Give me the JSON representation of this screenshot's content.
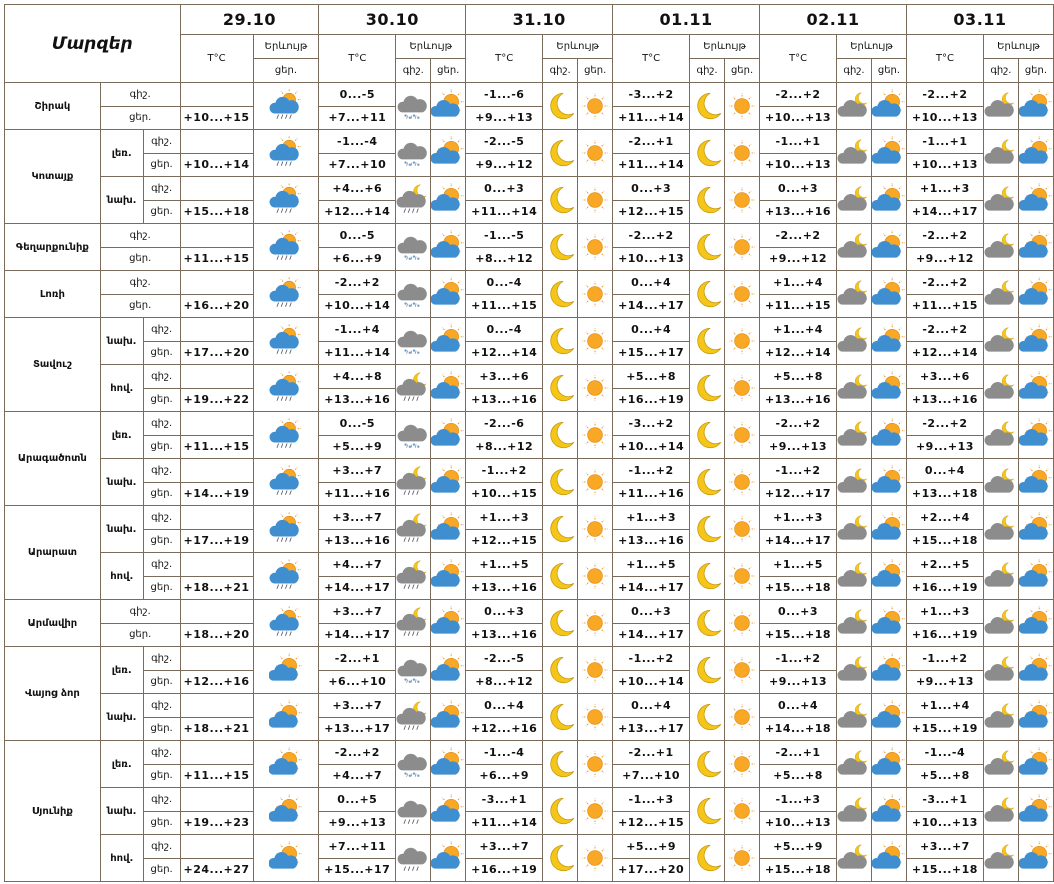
{
  "header": {
    "title": "Մարզեր",
    "phenomenon": "Երևույթ",
    "temp": "T°C",
    "night": "գիշ.",
    "day": "ցեր."
  },
  "dates": [
    "29.10",
    "30.10",
    "31.10",
    "01.11",
    "02.11",
    "03.11"
  ],
  "colors": {
    "border": "#7a6c5c",
    "sun": "#f9a825",
    "moon": "#f5c518",
    "cloud_blue": "#3f8fd0",
    "cloud_gray": "#8c8c8c"
  },
  "regions": [
    {
      "name": "Շիրակ",
      "zones": [
        {
          "zone": "",
          "day1": "+10...+15",
          "day1_icon": "rain-partly-sunny-icon",
          "days": [
            {
              "night": "0...-5",
              "day": "+7...+11",
              "night_icon": "snow-cloud-icon",
              "day_icon": "partly-sunny-icon"
            },
            {
              "night": "-1...-6",
              "day": "+9...+13",
              "night_icon": "moon-icon",
              "day_icon": "sun-icon"
            },
            {
              "night": "-3...+2",
              "day": "+11...+14",
              "night_icon": "moon-icon",
              "day_icon": "sun-icon"
            },
            {
              "night": "-2...+2",
              "day": "+10...+13",
              "night_icon": "night-cloud-icon",
              "day_icon": "partly-sunny-icon"
            },
            {
              "night": "-2...+2",
              "day": "+10...+13",
              "night_icon": "night-cloud-icon",
              "day_icon": "partly-sunny-icon"
            }
          ]
        }
      ]
    },
    {
      "name": "Կոտայք",
      "zones": [
        {
          "zone": "լեռ.",
          "day1": "+10...+14",
          "day1_icon": "rain-partly-sunny-icon",
          "days": [
            {
              "night": "-1...-4",
              "day": "+7...+10",
              "night_icon": "snow-cloud-icon",
              "day_icon": "partly-sunny-icon"
            },
            {
              "night": "-2...-5",
              "day": "+9...+12",
              "night_icon": "moon-icon",
              "day_icon": "sun-icon"
            },
            {
              "night": "-2...+1",
              "day": "+11...+14",
              "night_icon": "moon-icon",
              "day_icon": "sun-icon"
            },
            {
              "night": "-1...+1",
              "day": "+10...+13",
              "night_icon": "night-cloud-icon",
              "day_icon": "partly-sunny-icon"
            },
            {
              "night": "-1...+1",
              "day": "+10...+13",
              "night_icon": "night-cloud-icon",
              "day_icon": "partly-sunny-icon"
            }
          ]
        },
        {
          "zone": "նախ.",
          "day1": "+15...+18",
          "day1_icon": "rain-partly-sunny-icon",
          "days": [
            {
              "night": "+4...+6",
              "day": "+12...+14",
              "night_icon": "night-cloud-rain-icon",
              "day_icon": "partly-sunny-icon"
            },
            {
              "night": "0...+3",
              "day": "+11...+14",
              "night_icon": "moon-icon",
              "day_icon": "sun-icon"
            },
            {
              "night": "0...+3",
              "day": "+12...+15",
              "night_icon": "moon-icon",
              "day_icon": "sun-icon"
            },
            {
              "night": "0...+3",
              "day": "+13...+16",
              "night_icon": "night-cloud-icon",
              "day_icon": "partly-sunny-icon"
            },
            {
              "night": "+1...+3",
              "day": "+14...+17",
              "night_icon": "night-cloud-icon",
              "day_icon": "partly-sunny-icon"
            }
          ]
        }
      ]
    },
    {
      "name": "Գեղարքունիք",
      "zones": [
        {
          "zone": "",
          "day1": "+11...+15",
          "day1_icon": "rain-partly-sunny-icon",
          "days": [
            {
              "night": "0...-5",
              "day": "+6...+9",
              "night_icon": "snow-cloud-icon",
              "day_icon": "partly-sunny-icon"
            },
            {
              "night": "-1...-5",
              "day": "+8...+12",
              "night_icon": "moon-icon",
              "day_icon": "sun-icon"
            },
            {
              "night": "-2...+2",
              "day": "+10...+13",
              "night_icon": "moon-icon",
              "day_icon": "sun-icon"
            },
            {
              "night": "-2...+2",
              "day": "+9...+12",
              "night_icon": "night-cloud-icon",
              "day_icon": "partly-sunny-icon"
            },
            {
              "night": "-2...+2",
              "day": "+9...+12",
              "night_icon": "night-cloud-icon",
              "day_icon": "partly-sunny-icon"
            }
          ]
        }
      ]
    },
    {
      "name": "Լոռի",
      "zones": [
        {
          "zone": "",
          "day1": "+16...+20",
          "day1_icon": "rain-partly-sunny-icon",
          "days": [
            {
              "night": "-2...+2",
              "day": "+10...+14",
              "night_icon": "snow-cloud-icon",
              "day_icon": "partly-sunny-icon"
            },
            {
              "night": "0...-4",
              "day": "+11...+15",
              "night_icon": "moon-icon",
              "day_icon": "sun-icon"
            },
            {
              "night": "0...+4",
              "day": "+14...+17",
              "night_icon": "moon-icon",
              "day_icon": "sun-icon"
            },
            {
              "night": "+1...+4",
              "day": "+11...+15",
              "night_icon": "night-cloud-icon",
              "day_icon": "partly-sunny-icon"
            },
            {
              "night": "-2...+2",
              "day": "+11...+15",
              "night_icon": "night-cloud-icon",
              "day_icon": "partly-sunny-icon"
            }
          ]
        }
      ]
    },
    {
      "name": "Տավուշ",
      "zones": [
        {
          "zone": "նախ.",
          "day1": "+17...+20",
          "day1_icon": "rain-partly-sunny-icon",
          "days": [
            {
              "night": "-1...+4",
              "day": "+11...+14",
              "night_icon": "snow-cloud-icon",
              "day_icon": "partly-sunny-icon"
            },
            {
              "night": "0...-4",
              "day": "+12...+14",
              "night_icon": "moon-icon",
              "day_icon": "sun-icon"
            },
            {
              "night": "0...+4",
              "day": "+15...+17",
              "night_icon": "moon-icon",
              "day_icon": "sun-icon"
            },
            {
              "night": "+1...+4",
              "day": "+12...+14",
              "night_icon": "night-cloud-icon",
              "day_icon": "partly-sunny-icon"
            },
            {
              "night": "-2...+2",
              "day": "+12...+14",
              "night_icon": "night-cloud-icon",
              "day_icon": "partly-sunny-icon"
            }
          ]
        },
        {
          "zone": "հով.",
          "day1": "+19...+22",
          "day1_icon": "rain-partly-sunny-icon",
          "days": [
            {
              "night": "+4...+8",
              "day": "+13...+16",
              "night_icon": "night-cloud-rain-icon",
              "day_icon": "partly-sunny-icon"
            },
            {
              "night": "+3...+6",
              "day": "+13...+16",
              "night_icon": "moon-icon",
              "day_icon": "sun-icon"
            },
            {
              "night": "+5...+8",
              "day": "+16...+19",
              "night_icon": "moon-icon",
              "day_icon": "sun-icon"
            },
            {
              "night": "+5...+8",
              "day": "+13...+16",
              "night_icon": "night-cloud-icon",
              "day_icon": "partly-sunny-icon"
            },
            {
              "night": "+3...+6",
              "day": "+13...+16",
              "night_icon": "night-cloud-icon",
              "day_icon": "partly-sunny-icon"
            }
          ]
        }
      ]
    },
    {
      "name": "Արագածոտն",
      "zones": [
        {
          "zone": "լեռ.",
          "day1": "+11...+15",
          "day1_icon": "rain-partly-sunny-icon",
          "days": [
            {
              "night": "0...-5",
              "day": "+5...+9",
              "night_icon": "snow-cloud-icon",
              "day_icon": "partly-sunny-icon"
            },
            {
              "night": "-2...-6",
              "day": "+8...+12",
              "night_icon": "moon-icon",
              "day_icon": "sun-icon"
            },
            {
              "night": "-3...+2",
              "day": "+10...+14",
              "night_icon": "moon-icon",
              "day_icon": "sun-icon"
            },
            {
              "night": "-2...+2",
              "day": "+9...+13",
              "night_icon": "night-cloud-icon",
              "day_icon": "partly-sunny-icon"
            },
            {
              "night": "-2...+2",
              "day": "+9...+13",
              "night_icon": "night-cloud-icon",
              "day_icon": "partly-sunny-icon"
            }
          ]
        },
        {
          "zone": "նախ.",
          "day1": "+14...+19",
          "day1_icon": "rain-partly-sunny-icon",
          "days": [
            {
              "night": "+3...+7",
              "day": "+11...+16",
              "night_icon": "night-cloud-rain-icon",
              "day_icon": "partly-sunny-icon"
            },
            {
              "night": "-1...+2",
              "day": "+10...+15",
              "night_icon": "moon-icon",
              "day_icon": "sun-icon"
            },
            {
              "night": "-1...+2",
              "day": "+11...+16",
              "night_icon": "moon-icon",
              "day_icon": "sun-icon"
            },
            {
              "night": "-1...+2",
              "day": "+12...+17",
              "night_icon": "night-cloud-icon",
              "day_icon": "partly-sunny-icon"
            },
            {
              "night": "0...+4",
              "day": "+13...+18",
              "night_icon": "night-cloud-icon",
              "day_icon": "partly-sunny-icon"
            }
          ]
        }
      ]
    },
    {
      "name": "Արարատ",
      "zones": [
        {
          "zone": "նախ.",
          "day1": "+17...+19",
          "day1_icon": "rain-partly-sunny-icon",
          "days": [
            {
              "night": "+3...+7",
              "day": "+13...+16",
              "night_icon": "night-cloud-rain-icon",
              "day_icon": "partly-sunny-icon"
            },
            {
              "night": "+1...+3",
              "day": "+12...+15",
              "night_icon": "moon-icon",
              "day_icon": "sun-icon"
            },
            {
              "night": "+1...+3",
              "day": "+13...+16",
              "night_icon": "moon-icon",
              "day_icon": "sun-icon"
            },
            {
              "night": "+1...+3",
              "day": "+14...+17",
              "night_icon": "night-cloud-icon",
              "day_icon": "partly-sunny-icon"
            },
            {
              "night": "+2...+4",
              "day": "+15...+18",
              "night_icon": "night-cloud-icon",
              "day_icon": "partly-sunny-icon"
            }
          ]
        },
        {
          "zone": "հով.",
          "day1": "+18...+21",
          "day1_icon": "rain-partly-sunny-icon",
          "days": [
            {
              "night": "+4...+7",
              "day": "+14...+17",
              "night_icon": "night-cloud-rain-icon",
              "day_icon": "partly-sunny-icon"
            },
            {
              "night": "+1...+5",
              "day": "+13...+16",
              "night_icon": "moon-icon",
              "day_icon": "sun-icon"
            },
            {
              "night": "+1...+5",
              "day": "+14...+17",
              "night_icon": "moon-icon",
              "day_icon": "sun-icon"
            },
            {
              "night": "+1...+5",
              "day": "+15...+18",
              "night_icon": "night-cloud-icon",
              "day_icon": "partly-sunny-icon"
            },
            {
              "night": "+2...+5",
              "day": "+16...+19",
              "night_icon": "night-cloud-icon",
              "day_icon": "partly-sunny-icon"
            }
          ]
        }
      ]
    },
    {
      "name": "Արմավիր",
      "zones": [
        {
          "zone": "",
          "day1": "+18...+20",
          "day1_icon": "rain-partly-sunny-icon",
          "days": [
            {
              "night": "+3...+7",
              "day": "+14...+17",
              "night_icon": "night-cloud-rain-icon",
              "day_icon": "partly-sunny-icon"
            },
            {
              "night": "0...+3",
              "day": "+13...+16",
              "night_icon": "moon-icon",
              "day_icon": "sun-icon"
            },
            {
              "night": "0...+3",
              "day": "+14...+17",
              "night_icon": "moon-icon",
              "day_icon": "sun-icon"
            },
            {
              "night": "0...+3",
              "day": "+15...+18",
              "night_icon": "night-cloud-icon",
              "day_icon": "partly-sunny-icon"
            },
            {
              "night": "+1...+3",
              "day": "+16...+19",
              "night_icon": "night-cloud-icon",
              "day_icon": "partly-sunny-icon"
            }
          ]
        }
      ]
    },
    {
      "name": "Վայոց ձոր",
      "zones": [
        {
          "zone": "լեռ.",
          "day1": "+12...+16",
          "day1_icon": "partly-sunny-icon",
          "days": [
            {
              "night": "-2...+1",
              "day": "+6...+10",
              "night_icon": "snow-cloud-icon",
              "day_icon": "partly-sunny-icon"
            },
            {
              "night": "-2...-5",
              "day": "+8...+12",
              "night_icon": "moon-icon",
              "day_icon": "sun-icon"
            },
            {
              "night": "-1...+2",
              "day": "+10...+14",
              "night_icon": "moon-icon",
              "day_icon": "sun-icon"
            },
            {
              "night": "-1...+2",
              "day": "+9...+13",
              "night_icon": "night-cloud-icon",
              "day_icon": "partly-sunny-icon"
            },
            {
              "night": "-1...+2",
              "day": "+9...+13",
              "night_icon": "night-cloud-icon",
              "day_icon": "partly-sunny-icon"
            }
          ]
        },
        {
          "zone": "նախ.",
          "day1": "+18...+21",
          "day1_icon": "partly-sunny-icon",
          "days": [
            {
              "night": "+3...+7",
              "day": "+13...+17",
              "night_icon": "night-cloud-rain-icon",
              "day_icon": "partly-sunny-icon"
            },
            {
              "night": "0...+4",
              "day": "+12...+16",
              "night_icon": "moon-icon",
              "day_icon": "sun-icon"
            },
            {
              "night": "0...+4",
              "day": "+13...+17",
              "night_icon": "moon-icon",
              "day_icon": "sun-icon"
            },
            {
              "night": "0...+4",
              "day": "+14...+18",
              "night_icon": "night-cloud-icon",
              "day_icon": "partly-sunny-icon"
            },
            {
              "night": "+1...+4",
              "day": "+15...+19",
              "night_icon": "night-cloud-icon",
              "day_icon": "partly-sunny-icon"
            }
          ]
        }
      ]
    },
    {
      "name": "Սյունիք",
      "zones": [
        {
          "zone": "լեռ.",
          "day1": "+11...+15",
          "day1_icon": "partly-sunny-icon",
          "days": [
            {
              "night": "-2...+2",
              "day": "+4...+7",
              "night_icon": "snow-cloud-icon",
              "day_icon": "partly-sunny-icon"
            },
            {
              "night": "-1...-4",
              "day": "+6...+9",
              "night_icon": "moon-icon",
              "day_icon": "sun-icon"
            },
            {
              "night": "-2...+1",
              "day": "+7...+10",
              "night_icon": "moon-icon",
              "day_icon": "sun-icon"
            },
            {
              "night": "-2...+1",
              "day": "+5...+8",
              "night_icon": "night-cloud-icon",
              "day_icon": "partly-sunny-icon"
            },
            {
              "night": "-1...-4",
              "day": "+5...+8",
              "night_icon": "night-cloud-icon",
              "day_icon": "partly-sunny-icon"
            }
          ]
        },
        {
          "zone": "նախ.",
          "day1": "+19...+23",
          "day1_icon": "partly-sunny-icon",
          "days": [
            {
              "night": "0...+5",
              "day": "+9...+13",
              "night_icon": "rain-cloud-icon",
              "day_icon": "partly-sunny-icon"
            },
            {
              "night": "-3...+1",
              "day": "+11...+14",
              "night_icon": "moon-icon",
              "day_icon": "sun-icon"
            },
            {
              "night": "-1...+3",
              "day": "+12...+15",
              "night_icon": "moon-icon",
              "day_icon": "sun-icon"
            },
            {
              "night": "-1...+3",
              "day": "+10...+13",
              "night_icon": "night-cloud-icon",
              "day_icon": "partly-sunny-icon"
            },
            {
              "night": "-3...+1",
              "day": "+10...+13",
              "night_icon": "night-cloud-icon",
              "day_icon": "partly-sunny-icon"
            }
          ]
        },
        {
          "zone": "հով.",
          "day1": "+24...+27",
          "day1_icon": "partly-sunny-icon",
          "days": [
            {
              "night": "+7...+11",
              "day": "+15...+17",
              "night_icon": "rain-cloud-icon",
              "day_icon": "partly-sunny-icon"
            },
            {
              "night": "+3...+7",
              "day": "+16...+19",
              "night_icon": "moon-icon",
              "day_icon": "sun-icon"
            },
            {
              "night": "+5...+9",
              "day": "+17...+20",
              "night_icon": "moon-icon",
              "day_icon": "sun-icon"
            },
            {
              "night": "+5...+9",
              "day": "+15...+18",
              "night_icon": "night-cloud-icon",
              "day_icon": "partly-sunny-icon"
            },
            {
              "night": "+3...+7",
              "day": "+15...+18",
              "night_icon": "night-cloud-icon",
              "day_icon": "partly-sunny-icon"
            }
          ]
        }
      ]
    }
  ]
}
